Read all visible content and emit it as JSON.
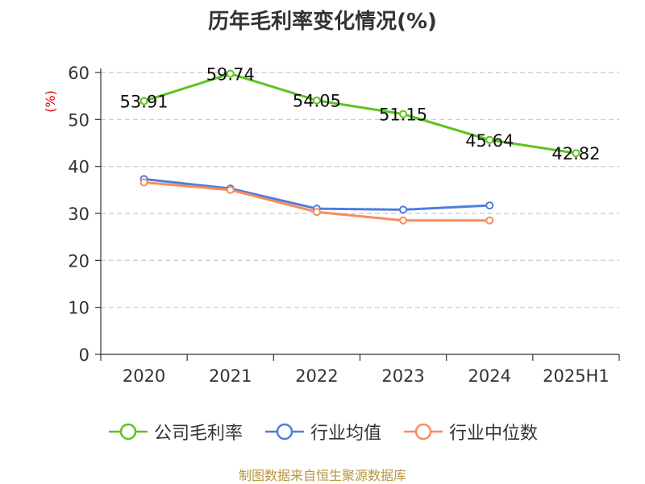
{
  "title": "历年毛利率变化情况(%)",
  "source_text": "制图数据来自恒生聚源数据库",
  "colors": {
    "title": "#333333",
    "axis": "#333333",
    "grid": "#c8c8c8",
    "unit_label": "#e60000",
    "source": "#b8953f"
  },
  "chart_data": {
    "type": "line",
    "title": "历年毛利率变化情况(%)",
    "ylabel": "(%)",
    "categories": [
      "2020",
      "2021",
      "2022",
      "2023",
      "2024",
      "2025H1"
    ],
    "ylim": [
      0,
      60
    ],
    "yticks": [
      0,
      10,
      20,
      30,
      40,
      50,
      60
    ],
    "grid": true,
    "legend_position": "bottom",
    "series": [
      {
        "name": "公司毛利率",
        "color": "#5cc41e",
        "values": [
          53.91,
          59.74,
          54.05,
          51.15,
          45.64,
          42.82
        ],
        "labels": [
          "53.91",
          "59.74",
          "54.05",
          "51.15",
          "45.64",
          "42.82"
        ]
      },
      {
        "name": "行业均值",
        "color": "#4f7fdc",
        "values": [
          37.3,
          35.3,
          31.0,
          30.8,
          31.7,
          null
        ]
      },
      {
        "name": "行业中位数",
        "color": "#f98c5a",
        "values": [
          36.6,
          35.0,
          30.3,
          28.5,
          28.5,
          null
        ]
      }
    ]
  }
}
